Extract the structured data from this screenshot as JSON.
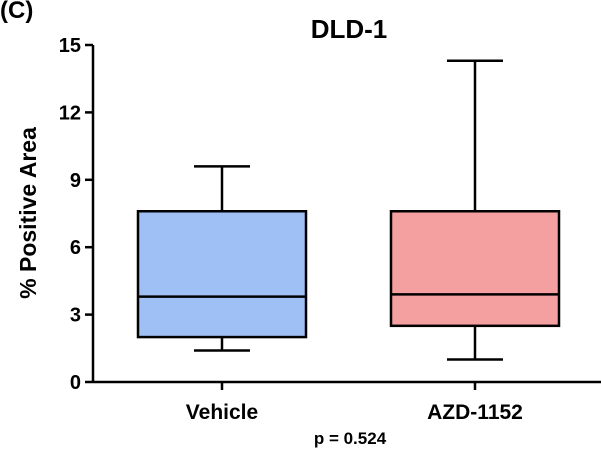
{
  "panel_label": "(C)",
  "chart_data": {
    "type": "box",
    "title": "DLD-1",
    "xlabel": "",
    "ylabel": "% Positive Area",
    "ylim": [
      0,
      15
    ],
    "yticks": [
      0,
      3,
      6,
      9,
      12,
      15
    ],
    "ytick_labels": [
      "0",
      "3",
      "6",
      "9",
      "12",
      "15"
    ],
    "categories": [
      "Vehicle",
      "AZD-1152"
    ],
    "boxes": [
      {
        "category": "Vehicle",
        "min": 1.4,
        "q1": 2.0,
        "median": 3.8,
        "q3": 7.6,
        "max": 9.6,
        "color": "#9fc0f5"
      },
      {
        "category": "AZD-1152",
        "min": 1.0,
        "q1": 2.5,
        "median": 3.9,
        "q3": 7.6,
        "max": 14.3,
        "color": "#f5a0a0"
      }
    ],
    "annotation": "p = 0.524",
    "grid": false,
    "legend": "none"
  }
}
